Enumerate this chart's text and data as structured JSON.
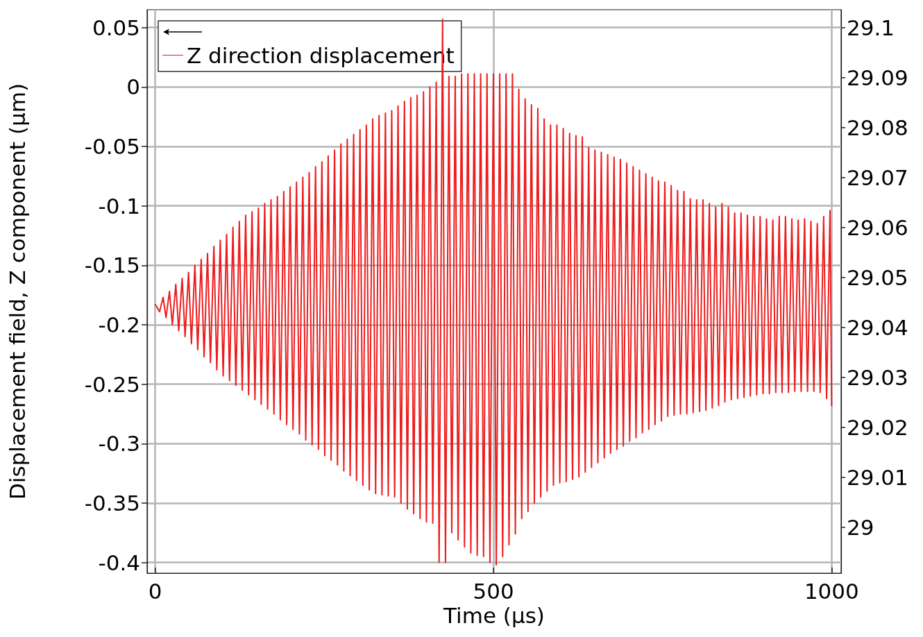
{
  "chart_data": {
    "type": "line",
    "xlabel": "Time (µs)",
    "ylabel": "Displacement field, Z component (µm)",
    "xlim": [
      -12,
      1014
    ],
    "xticks": [
      0,
      500,
      1000
    ],
    "ylim": [
      -0.409,
      0.065
    ],
    "yticks": [
      0.05,
      0,
      -0.05,
      -0.1,
      -0.15,
      -0.2,
      -0.25,
      -0.3,
      -0.35,
      -0.4
    ],
    "y2lim": [
      28.9908,
      29.1036
    ],
    "y2ticks": [
      29,
      29.01,
      29.02,
      29.03,
      29.04,
      29.05,
      29.06,
      29.07,
      29.08,
      29.09,
      29.1
    ],
    "grid": true,
    "legend": "top left",
    "marker": "none",
    "line_style": "solid",
    "x": [
      0,
      6.5,
      11.6,
      15.9,
      21.0,
      25.3,
      30.4,
      34.7,
      39.8,
      44.1,
      49.2,
      53.5,
      58.6,
      62.8,
      67.9,
      72.2,
      77.3,
      81.6,
      86.7,
      91.0,
      96.1,
      100.4,
      105.5,
      109.8,
      114.9,
      119.2,
      124.3,
      128.6,
      133.7,
      138.0,
      143.1,
      147.4,
      152.5,
      156.7,
      161.8,
      166.1,
      171.2,
      175.5,
      180.6,
      184.9,
      190.0,
      194.3,
      199.4,
      203.7,
      208.8,
      213.1,
      218.2,
      222.5,
      227.6,
      231.9,
      237.0,
      241.3,
      246.4,
      250.6,
      255.7,
      260.0,
      265.1,
      269.4,
      274.5,
      278.8,
      283.9,
      288.2,
      293.3,
      297.6,
      302.7,
      307.0,
      312.1,
      316.4,
      321.5,
      325.8,
      330.9,
      335.2,
      340.3,
      344.5,
      349.6,
      353.9,
      359.0,
      363.3,
      368.4,
      372.7,
      377.8,
      382.1,
      387.2,
      391.5,
      396.6,
      400.9,
      406.0,
      410.3,
      415.4,
      419.7,
      424.8,
      429.1,
      434.2,
      438.4,
      443.5,
      447.8,
      452.9,
      457.2,
      462.3,
      466.6,
      471.7,
      476.0,
      481.1,
      485.4,
      490.5,
      494.8,
      499.9,
      504.2,
      509.3,
      513.6,
      518.7,
      523.0,
      528.1,
      532.4,
      537.5,
      541.8,
      546.9,
      551.1,
      556.2,
      560.5,
      565.6,
      569.9,
      575.0,
      579.3,
      584.4,
      588.7,
      593.8,
      598.1,
      603.2,
      607.5,
      612.6,
      616.9,
      622.0,
      626.3,
      631.4,
      635.7,
      640.8,
      645.0,
      650.1,
      654.4,
      659.5,
      663.8,
      668.9,
      673.2,
      678.3,
      682.6,
      687.7,
      692.0,
      697.1,
      701.4,
      706.5,
      710.8,
      715.9,
      720.2,
      725.3,
      729.6,
      734.7,
      738.9,
      744.0,
      748.3,
      753.4,
      757.7,
      762.8,
      767.1,
      772.2,
      776.5,
      781.6,
      785.9,
      791.0,
      795.3,
      800.4,
      804.7,
      809.8,
      814.1,
      819.2,
      823.5,
      828.6,
      832.8,
      837.9,
      842.2,
      847.3,
      851.6,
      856.7,
      861.0,
      866.1,
      870.4,
      875.5,
      879.8,
      884.9,
      889.2,
      894.3,
      898.6,
      903.7,
      908.0,
      913.1,
      917.4,
      922.5,
      926.7,
      931.8,
      936.1,
      941.2,
      945.5,
      950.6,
      954.9,
      960.0,
      964.3,
      969.4,
      973.7,
      978.8,
      983.1,
      988.2,
      992.5,
      997.6,
      1000
    ],
    "series": [
      {
        "name": "Z direction displacement",
        "color": "#ee1c1c",
        "values": [
          -0.183,
          -0.189,
          -0.177,
          -0.194,
          -0.172,
          -0.2,
          -0.166,
          -0.205,
          -0.161,
          -0.21,
          -0.156,
          -0.216,
          -0.15,
          -0.221,
          -0.145,
          -0.227,
          -0.14,
          -0.232,
          -0.134,
          -0.238,
          -0.129,
          -0.243,
          -0.124,
          -0.247,
          -0.118,
          -0.251,
          -0.113,
          -0.255,
          -0.108,
          -0.259,
          -0.105,
          -0.263,
          -0.102,
          -0.267,
          -0.098,
          -0.271,
          -0.095,
          -0.275,
          -0.092,
          -0.28,
          -0.088,
          -0.284,
          -0.084,
          -0.288,
          -0.08,
          -0.292,
          -0.076,
          -0.297,
          -0.072,
          -0.301,
          -0.067,
          -0.305,
          -0.063,
          -0.31,
          -0.058,
          -0.314,
          -0.053,
          -0.318,
          -0.048,
          -0.323,
          -0.044,
          -0.327,
          -0.04,
          -0.331,
          -0.036,
          -0.335,
          -0.032,
          -0.339,
          -0.027,
          -0.342,
          -0.024,
          -0.343,
          -0.022,
          -0.344,
          -0.02,
          -0.345,
          -0.016,
          -0.35,
          -0.012,
          -0.355,
          -0.009,
          -0.359,
          -0.007,
          -0.363,
          -0.004,
          -0.366,
          0.0,
          -0.367,
          0.004,
          -0.4,
          0.057,
          -0.4,
          0.009,
          -0.375,
          0.009,
          -0.381,
          0.011,
          -0.387,
          0.011,
          -0.392,
          0.011,
          -0.394,
          0.011,
          -0.395,
          0.011,
          -0.4,
          0.011,
          -0.402,
          0.011,
          -0.395,
          0.011,
          -0.385,
          0.011,
          -0.376,
          -0.002,
          -0.363,
          -0.01,
          -0.357,
          -0.015,
          -0.35,
          -0.018,
          -0.345,
          -0.027,
          -0.34,
          -0.032,
          -0.335,
          -0.032,
          -0.333,
          -0.035,
          -0.332,
          -0.039,
          -0.33,
          -0.041,
          -0.328,
          -0.042,
          -0.324,
          -0.051,
          -0.32,
          -0.053,
          -0.316,
          -0.055,
          -0.312,
          -0.057,
          -0.308,
          -0.059,
          -0.305,
          -0.061,
          -0.302,
          -0.064,
          -0.298,
          -0.067,
          -0.295,
          -0.07,
          -0.291,
          -0.073,
          -0.288,
          -0.076,
          -0.284,
          -0.079,
          -0.281,
          -0.08,
          -0.277,
          -0.083,
          -0.276,
          -0.087,
          -0.275,
          -0.088,
          -0.275,
          -0.094,
          -0.274,
          -0.095,
          -0.273,
          -0.095,
          -0.272,
          -0.098,
          -0.27,
          -0.101,
          -0.268,
          -0.098,
          -0.265,
          -0.101,
          -0.263,
          -0.106,
          -0.262,
          -0.106,
          -0.261,
          -0.108,
          -0.26,
          -0.109,
          -0.259,
          -0.109,
          -0.258,
          -0.111,
          -0.258,
          -0.112,
          -0.257,
          -0.109,
          -0.257,
          -0.109,
          -0.257,
          -0.111,
          -0.256,
          -0.112,
          -0.256,
          -0.111,
          -0.256,
          -0.113,
          -0.256,
          -0.115,
          -0.257,
          -0.109,
          -0.262,
          -0.104,
          -0.268
        ]
      }
    ]
  }
}
